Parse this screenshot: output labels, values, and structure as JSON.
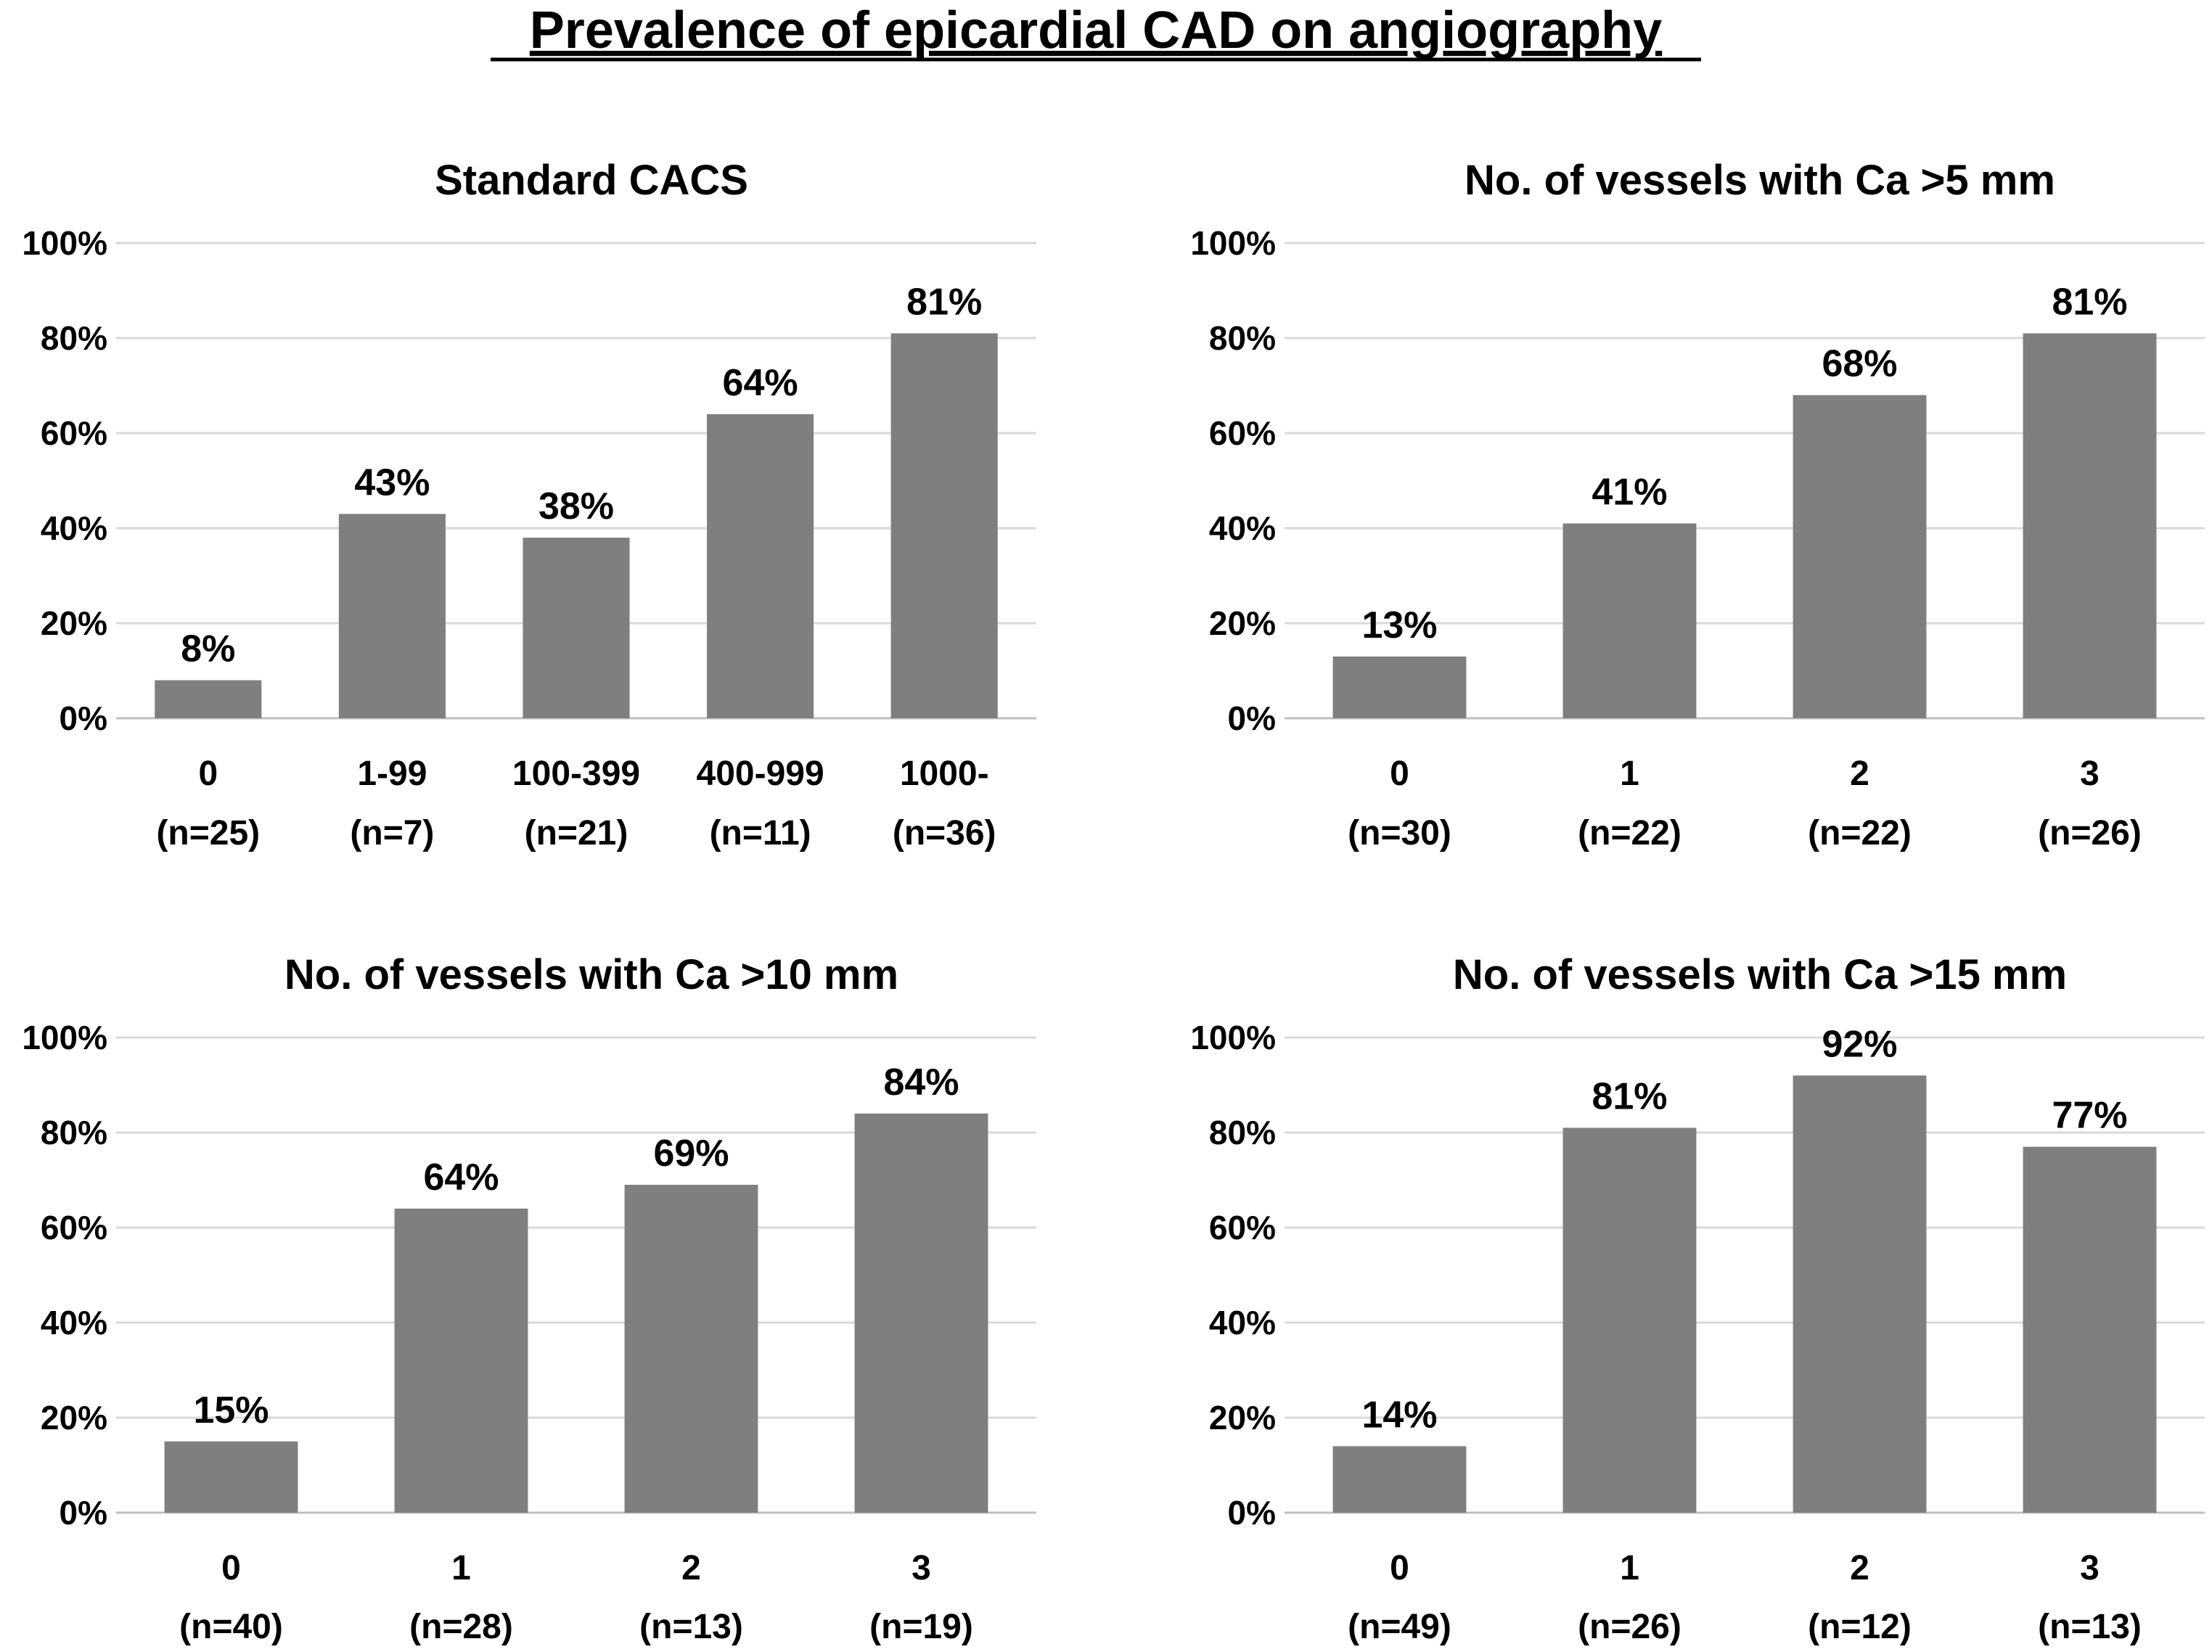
{
  "title": "Prevalence of epicardial CAD on angiography",
  "colors": {
    "bar": "#7f7f7f",
    "gridline": "#d9d9d9",
    "text": "#000000"
  },
  "chart_data": [
    {
      "type": "bar",
      "title": "Standard CACS",
      "categories": [
        "0",
        "1-99",
        "100-399",
        "400-999",
        "1000-"
      ],
      "n_labels": [
        "(n=25)",
        "(n=7)",
        "(n=21)",
        "(n=11)",
        "(n=36)"
      ],
      "values": [
        8,
        43,
        38,
        64,
        81
      ],
      "value_labels": [
        "8%",
        "43%",
        "38%",
        "64%",
        "81%"
      ],
      "ylim": [
        0,
        100
      ],
      "yticks": [
        "0%",
        "20%",
        "40%",
        "60%",
        "80%",
        "100%"
      ],
      "grid": true,
      "xlabel": "",
      "ylabel": ""
    },
    {
      "type": "bar",
      "title": "No. of vessels with Ca >5 mm",
      "categories": [
        "0",
        "1",
        "2",
        "3"
      ],
      "n_labels": [
        "(n=30)",
        "(n=22)",
        "(n=22)",
        "(n=26)"
      ],
      "values": [
        13,
        41,
        68,
        81
      ],
      "value_labels": [
        "13%",
        "41%",
        "68%",
        "81%"
      ],
      "ylim": [
        0,
        100
      ],
      "yticks": [
        "0%",
        "20%",
        "40%",
        "60%",
        "80%",
        "100%"
      ],
      "grid": true,
      "xlabel": "",
      "ylabel": ""
    },
    {
      "type": "bar",
      "title": "No. of vessels with Ca >10 mm",
      "categories": [
        "0",
        "1",
        "2",
        "3"
      ],
      "n_labels": [
        "(n=40)",
        "(n=28)",
        "(n=13)",
        "(n=19)"
      ],
      "values": [
        15,
        64,
        69,
        84
      ],
      "value_labels": [
        "15%",
        "64%",
        "69%",
        "84%"
      ],
      "ylim": [
        0,
        100
      ],
      "yticks": [
        "0%",
        "20%",
        "40%",
        "60%",
        "80%",
        "100%"
      ],
      "grid": true,
      "xlabel": "",
      "ylabel": ""
    },
    {
      "type": "bar",
      "title": "No. of vessels with Ca >15 mm",
      "categories": [
        "0",
        "1",
        "2",
        "3"
      ],
      "n_labels": [
        "(n=49)",
        "(n=26)",
        "(n=12)",
        "(n=13)"
      ],
      "values": [
        14,
        81,
        92,
        77
      ],
      "value_labels": [
        "14%",
        "81%",
        "92%",
        "77%"
      ],
      "ylim": [
        0,
        100
      ],
      "yticks": [
        "0%",
        "20%",
        "40%",
        "60%",
        "80%",
        "100%"
      ],
      "grid": true,
      "xlabel": "",
      "ylabel": ""
    }
  ]
}
